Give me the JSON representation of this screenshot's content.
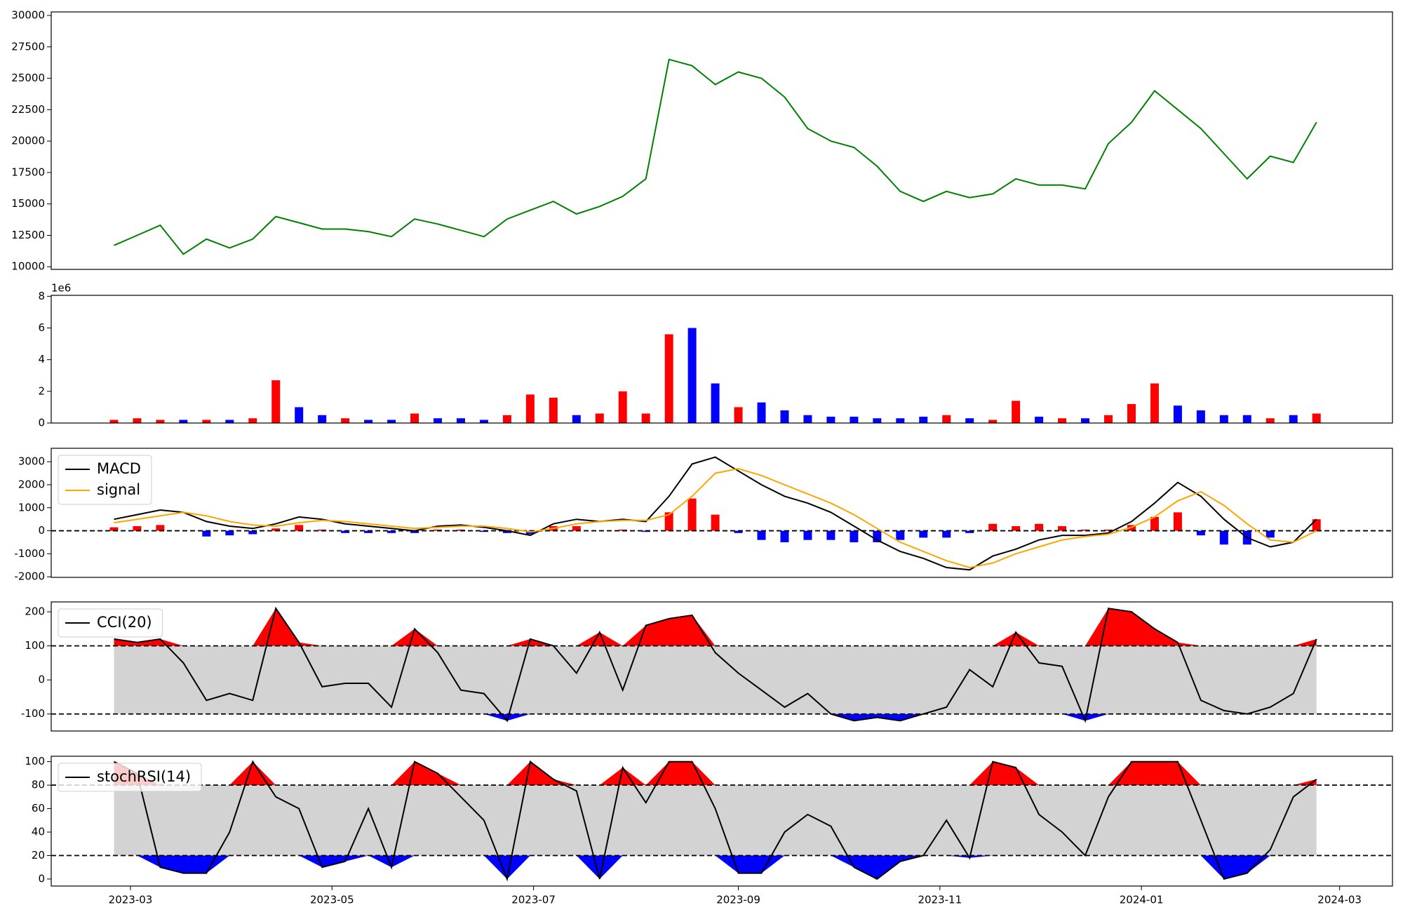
{
  "chart_data": [
    {
      "type": "line",
      "x": [
        -5,
        2,
        9,
        16,
        23,
        30,
        37,
        44,
        51,
        58,
        65,
        72,
        79,
        86,
        93,
        100,
        107,
        114,
        121,
        128,
        135,
        142,
        149,
        156,
        163,
        170,
        177,
        184,
        191,
        198,
        205,
        212,
        219,
        226,
        233,
        240,
        247,
        254,
        261,
        268,
        275,
        282,
        289,
        296,
        303,
        310,
        317,
        324,
        331,
        338,
        345,
        352,
        359
      ],
      "xlim": [
        -24,
        382
      ],
      "ylim": [
        9790,
        30280
      ],
      "yticks": [
        10000,
        12500,
        15000,
        17500,
        20000,
        22500,
        25000,
        27500,
        30000
      ],
      "series": [
        {
          "color": "green",
          "values": [
            11700,
            12500,
            13300,
            11000,
            12200,
            11500,
            12200,
            14000,
            13500,
            13000,
            13000,
            12800,
            12400,
            13800,
            13400,
            12900,
            12400,
            13800,
            14500,
            15200,
            14200,
            14800,
            15600,
            17000,
            26500,
            26000,
            24500,
            25500,
            25000,
            23500,
            21000,
            20000,
            19500,
            18000,
            16000,
            15200,
            16000,
            15500,
            15800,
            17000,
            16500,
            16500,
            16200,
            19800,
            21500,
            24000,
            22500,
            21000,
            19000,
            17000,
            18800,
            18300,
            21500
          ]
        }
      ]
    },
    {
      "type": "bar",
      "x": [
        -5,
        2,
        9,
        16,
        23,
        30,
        37,
        44,
        51,
        58,
        65,
        72,
        79,
        86,
        93,
        100,
        107,
        114,
        121,
        128,
        135,
        142,
        149,
        156,
        163,
        170,
        177,
        184,
        191,
        198,
        205,
        212,
        219,
        226,
        233,
        240,
        247,
        254,
        261,
        268,
        275,
        282,
        289,
        296,
        303,
        310,
        317,
        324,
        331,
        338,
        345,
        352,
        359
      ],
      "xlim": [
        -24,
        382
      ],
      "ylim": [
        0,
        8.06
      ],
      "yticks": [
        0,
        2,
        4,
        6,
        8
      ],
      "offset_label": "1e6",
      "values": [
        0.2,
        0.3,
        0.2,
        0.2,
        0.2,
        0.2,
        0.3,
        2.7,
        1.0,
        0.5,
        0.3,
        0.2,
        0.2,
        0.6,
        0.3,
        0.3,
        0.2,
        0.5,
        1.8,
        1.6,
        0.5,
        0.6,
        2.0,
        0.6,
        5.6,
        6.0,
        2.5,
        1.0,
        1.3,
        0.8,
        0.5,
        0.4,
        0.4,
        0.3,
        0.3,
        0.4,
        0.5,
        0.3,
        0.2,
        1.4,
        0.4,
        0.3,
        0.3,
        0.5,
        1.2,
        2.5,
        1.1,
        0.8,
        0.5,
        0.5,
        0.3,
        0.5,
        0.6
      ],
      "colors": [
        "red",
        "red",
        "red",
        "blue",
        "red",
        "blue",
        "red",
        "red",
        "blue",
        "blue",
        "red",
        "blue",
        "blue",
        "red",
        "blue",
        "blue",
        "blue",
        "red",
        "red",
        "red",
        "blue",
        "red",
        "red",
        "red",
        "red",
        "blue",
        "blue",
        "red",
        "blue",
        "blue",
        "blue",
        "blue",
        "blue",
        "blue",
        "blue",
        "blue",
        "red",
        "blue",
        "red",
        "red",
        "blue",
        "red",
        "blue",
        "red",
        "red",
        "red",
        "blue",
        "blue",
        "blue",
        "blue",
        "red",
        "blue",
        "red"
      ]
    },
    {
      "type": "macd",
      "x": [
        -5,
        2,
        9,
        16,
        23,
        30,
        37,
        44,
        51,
        58,
        65,
        72,
        79,
        86,
        93,
        100,
        107,
        114,
        121,
        128,
        135,
        142,
        149,
        156,
        163,
        170,
        177,
        184,
        191,
        198,
        205,
        212,
        219,
        226,
        233,
        240,
        247,
        254,
        261,
        268,
        275,
        282,
        289,
        296,
        303,
        310,
        317,
        324,
        331,
        338,
        345,
        352,
        359
      ],
      "xlim": [
        -24,
        382
      ],
      "ylim": [
        -2026,
        3584
      ],
      "yticks": [
        -2000,
        -1000,
        0,
        1000,
        2000,
        3000
      ],
      "hlines": [
        0
      ],
      "legend": "upper left",
      "series": [
        {
          "name": "MACD",
          "color": "black",
          "values": [
            500,
            700,
            900,
            800,
            400,
            200,
            100,
            300,
            600,
            500,
            300,
            200,
            100,
            0,
            200,
            250,
            150,
            0,
            -200,
            300,
            500,
            400,
            500,
            400,
            1500,
            2900,
            3200,
            2600,
            2000,
            1500,
            1200,
            800,
            200,
            -400,
            -900,
            -1200,
            -1600,
            -1700,
            -1100,
            -800,
            -400,
            -200,
            -200,
            -100,
            400,
            1200,
            2100,
            1500,
            500,
            -300,
            -700,
            -500,
            500
          ]
        },
        {
          "name": "signal",
          "color": "orange",
          "values": [
            350,
            500,
            650,
            800,
            650,
            400,
            250,
            200,
            350,
            450,
            400,
            300,
            200,
            100,
            150,
            200,
            200,
            100,
            -50,
            100,
            300,
            400,
            450,
            450,
            700,
            1500,
            2500,
            2700,
            2400,
            2000,
            1600,
            1200,
            700,
            100,
            -500,
            -900,
            -1300,
            -1600,
            -1400,
            -1000,
            -700,
            -400,
            -250,
            -150,
            150,
            600,
            1300,
            1700,
            1100,
            300,
            -400,
            -500,
            0
          ]
        }
      ],
      "histogram": [
        150,
        200,
        250,
        0,
        -250,
        -200,
        -150,
        100,
        250,
        50,
        -100,
        -100,
        -100,
        -100,
        50,
        50,
        -50,
        -100,
        -150,
        200,
        200,
        0,
        50,
        -50,
        800,
        1400,
        700,
        -100,
        -400,
        -500,
        -400,
        -400,
        -500,
        -500,
        -400,
        -300,
        -300,
        -100,
        300,
        200,
        300,
        200,
        50,
        50,
        250,
        600,
        800,
        -200,
        -600,
        -600,
        -300,
        0,
        500
      ],
      "hist_colors": [
        "red",
        "blue"
      ]
    },
    {
      "type": "band",
      "x": [
        -5,
        2,
        9,
        16,
        23,
        30,
        37,
        44,
        51,
        58,
        65,
        72,
        79,
        86,
        93,
        100,
        107,
        114,
        121,
        128,
        135,
        142,
        149,
        156,
        163,
        170,
        177,
        184,
        191,
        198,
        205,
        212,
        219,
        226,
        233,
        240,
        247,
        254,
        261,
        268,
        275,
        282,
        289,
        296,
        303,
        310,
        317,
        324,
        331,
        338,
        345,
        352,
        359
      ],
      "xlim": [
        -24,
        382
      ],
      "ylim": [
        -150,
        229
      ],
      "yticks": [
        -100,
        0,
        100,
        200
      ],
      "thresholds": [
        100,
        -100
      ],
      "band_color": "lightgray",
      "upper_color": "red",
      "lower_color": "blue",
      "legend": "upper left",
      "series": [
        {
          "name": "CCI(20)",
          "color": "black",
          "values": [
            120,
            110,
            120,
            50,
            -60,
            -40,
            -60,
            210,
            110,
            -20,
            -10,
            -10,
            -80,
            150,
            80,
            -30,
            -40,
            -120,
            120,
            100,
            20,
            140,
            -30,
            160,
            180,
            190,
            80,
            20,
            -30,
            -80,
            -40,
            -100,
            -120,
            -110,
            -120,
            -100,
            -80,
            30,
            -20,
            140,
            50,
            40,
            -120,
            210,
            200,
            150,
            110,
            -60,
            -90,
            -100,
            -80,
            -40,
            120
          ]
        }
      ]
    },
    {
      "type": "band",
      "x": [
        -5,
        2,
        9,
        16,
        23,
        30,
        37,
        44,
        51,
        58,
        65,
        72,
        79,
        86,
        93,
        100,
        107,
        114,
        121,
        128,
        135,
        142,
        149,
        156,
        163,
        170,
        177,
        184,
        191,
        198,
        205,
        212,
        219,
        226,
        233,
        240,
        247,
        254,
        261,
        268,
        275,
        282,
        289,
        296,
        303,
        310,
        317,
        324,
        331,
        338,
        345,
        352,
        359
      ],
      "xlim": [
        -24,
        382
      ],
      "ylim": [
        -6,
        104.6
      ],
      "yticks": [
        0,
        20,
        40,
        60,
        80,
        100
      ],
      "xticks": [
        {
          "value": 0,
          "label": "2023-03"
        },
        {
          "value": 61,
          "label": "2023-05"
        },
        {
          "value": 122,
          "label": "2023-07"
        },
        {
          "value": 184,
          "label": "2023-09"
        },
        {
          "value": 245,
          "label": "2023-11"
        },
        {
          "value": 306,
          "label": "2024-01"
        },
        {
          "value": 366,
          "label": "2024-03"
        }
      ],
      "thresholds": [
        80,
        20
      ],
      "band_color": "lightgray",
      "upper_color": "red",
      "lower_color": "blue",
      "legend": "upper left",
      "series": [
        {
          "name": "stochRSI(14)",
          "color": "black",
          "values": [
            100,
            90,
            10,
            5,
            5,
            40,
            100,
            70,
            60,
            10,
            15,
            60,
            10,
            100,
            90,
            70,
            50,
            0,
            100,
            85,
            75,
            0,
            95,
            65,
            100,
            100,
            60,
            5,
            5,
            40,
            55,
            45,
            10,
            0,
            15,
            20,
            50,
            18,
            100,
            95,
            55,
            40,
            20,
            70,
            100,
            100,
            100,
            50,
            0,
            5,
            25,
            70,
            85
          ]
        }
      ]
    }
  ]
}
